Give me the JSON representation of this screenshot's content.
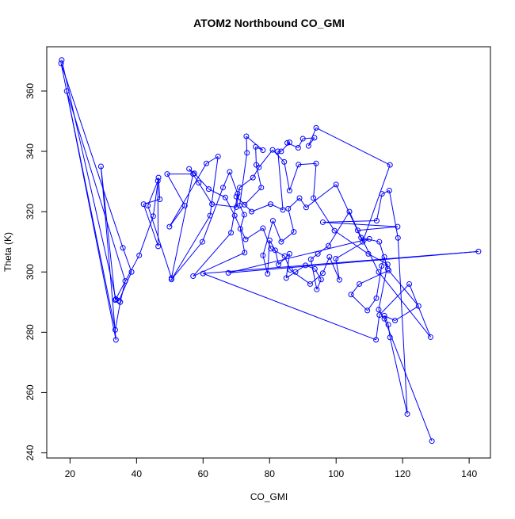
{
  "chart_data": {
    "type": "line",
    "title": "ATOM2 Northbound CO_GMI",
    "xlabel": "CO_GMI",
    "ylabel": "Theta (K)",
    "xlim": [
      13.0,
      146.4
    ],
    "ylim": [
      238.3,
      374.7
    ],
    "x_ticks": [
      20,
      40,
      60,
      80,
      100,
      120,
      140
    ],
    "y_ticks": [
      240,
      260,
      280,
      300,
      320,
      340,
      360
    ],
    "grid": false,
    "legend": "none",
    "series_color": "#0000ff",
    "markers": "open-circle",
    "series": [
      {
        "points": [
          [
            17.5,
            370.3
          ],
          [
            33.8,
            291.0
          ],
          [
            34.7,
            290.5
          ],
          [
            38.5,
            300.0
          ],
          [
            35.9,
            308.0
          ],
          [
            17.3,
            369.2
          ],
          [
            33.6,
            280.8
          ],
          [
            35.1,
            290.0
          ],
          [
            36.6,
            297.0
          ],
          [
            19.0,
            360.0
          ],
          [
            33.8,
            277.5
          ],
          [
            29.3,
            335.0
          ],
          [
            33.6,
            290.7
          ],
          [
            40.8,
            305.5
          ],
          [
            45.0,
            318.5
          ],
          [
            46.6,
            331.3
          ],
          [
            47.0,
            324.1
          ],
          [
            42.1,
            322.5
          ],
          [
            46.5,
            308.5
          ],
          [
            46.4,
            330.2
          ],
          [
            43.4,
            322.0
          ],
          [
            50.5,
            298.0
          ],
          [
            57.0,
            332.5
          ],
          [
            49.2,
            332.5
          ],
          [
            54.5,
            322.0
          ],
          [
            49.9,
            315.0
          ],
          [
            61.0,
            336.0
          ],
          [
            64.5,
            338.3
          ],
          [
            62.1,
            318.7
          ],
          [
            50.5,
            297.5
          ],
          [
            59.8,
            310.0
          ],
          [
            66.0,
            328.0
          ],
          [
            68.0,
            333.2
          ],
          [
            70.4,
            326.0
          ],
          [
            68.4,
            313.0
          ],
          [
            57.0,
            298.6
          ],
          [
            72.5,
            306.4
          ],
          [
            71.2,
            314.3
          ],
          [
            72.4,
            319.0
          ],
          [
            71.0,
            322.0
          ],
          [
            73.2,
            339.5
          ],
          [
            73.0,
            345.0
          ],
          [
            78.0,
            340.4
          ],
          [
            75.8,
            341.5
          ],
          [
            76.0,
            335.5
          ],
          [
            77.5,
            328.0
          ],
          [
            72.5,
            322.3
          ],
          [
            70.0,
            325.0
          ],
          [
            74.6,
            320.0
          ],
          [
            80.3,
            322.5
          ],
          [
            84.0,
            320.6
          ],
          [
            82.5,
            340.0
          ],
          [
            83.5,
            340.0
          ],
          [
            86.0,
            343.0
          ],
          [
            85.3,
            342.8
          ],
          [
            88.6,
            341.2
          ],
          [
            90.0,
            344.2
          ],
          [
            93.5,
            344.5
          ],
          [
            91.7,
            341.8
          ],
          [
            94.0,
            347.8
          ],
          [
            116.2,
            335.5
          ],
          [
            108.0,
            310.0
          ],
          [
            100.0,
            329.0
          ],
          [
            91.0,
            321.4
          ],
          [
            89.0,
            324.5
          ],
          [
            85.6,
            321.0
          ],
          [
            87.3,
            313.3
          ],
          [
            83.5,
            310.0
          ],
          [
            81.0,
            317.0
          ],
          [
            78.0,
            305.5
          ],
          [
            79.4,
            299.4
          ],
          [
            80.0,
            310.5
          ],
          [
            81.7,
            307.2
          ],
          [
            82.7,
            302.5
          ],
          [
            86.0,
            306.0
          ],
          [
            85.0,
            298.0
          ],
          [
            87.8,
            300.0
          ],
          [
            90.8,
            302.2
          ],
          [
            93.6,
            301.0
          ],
          [
            95.5,
            297.5
          ],
          [
            94.2,
            294.2
          ],
          [
            92.4,
            304.2
          ],
          [
            94.5,
            306.0
          ],
          [
            97.7,
            308.7
          ],
          [
            104.0,
            320.0
          ],
          [
            107.5,
            311.4
          ],
          [
            113.0,
            310.0
          ],
          [
            115.5,
            301.0
          ],
          [
            114.5,
            305.0
          ],
          [
            113.7,
            302.0
          ],
          [
            112.1,
            291.3
          ],
          [
            109.4,
            287.2
          ],
          [
            104.5,
            292.5
          ],
          [
            107.0,
            296.0
          ],
          [
            115.8,
            300.5
          ],
          [
            124.8,
            288.7
          ],
          [
            117.7,
            283.9
          ],
          [
            114.5,
            285.5
          ],
          [
            115.7,
            282.5
          ],
          [
            116.2,
            278.3
          ],
          [
            121.4,
            252.9
          ],
          [
            118.6,
            311.3
          ],
          [
            116.0,
            327.0
          ],
          [
            113.8,
            325.9
          ],
          [
            112.2,
            317.0
          ],
          [
            96.0,
            316.5
          ],
          [
            118.5,
            315.0
          ],
          [
            106.5,
            313.8
          ],
          [
            112.8,
            300.0
          ],
          [
            128.4,
            278.4
          ],
          [
            122.0,
            296.0
          ],
          [
            113.0,
            285.7
          ],
          [
            112.0,
            277.5
          ],
          [
            60.0,
            299.5
          ],
          [
            142.8,
            306.8
          ],
          [
            67.6,
            299.7
          ],
          [
            110.0,
            311.0
          ],
          [
            99.9,
            304.4
          ],
          [
            101.0,
            297.4
          ],
          [
            98.0,
            305.0
          ],
          [
            96.0,
            299.6
          ],
          [
            92.2,
            296.0
          ],
          [
            86.2,
            300.7
          ],
          [
            84.5,
            305.3
          ],
          [
            80.4,
            307.7
          ],
          [
            78.0,
            314.5
          ],
          [
            72.8,
            310.8
          ],
          [
            69.5,
            318.7
          ],
          [
            66.7,
            324.7
          ],
          [
            61.7,
            327.5
          ],
          [
            57.4,
            332.7
          ],
          [
            55.8,
            334.2
          ],
          [
            58.7,
            329.6
          ],
          [
            62.7,
            322.5
          ],
          [
            70.0,
            321.5
          ],
          [
            71.0,
            328.0
          ],
          [
            75.0,
            331.3
          ],
          [
            76.8,
            334.7
          ],
          [
            80.9,
            340.5
          ],
          [
            84.4,
            336.5
          ],
          [
            86.0,
            327.0
          ],
          [
            88.7,
            335.6
          ],
          [
            94.0,
            336.0
          ],
          [
            93.2,
            324.5
          ],
          [
            99.5,
            313.7
          ],
          [
            109.7,
            306.0
          ],
          [
            115.5,
            302.5
          ],
          [
            112.8,
            287.5
          ],
          [
            114.5,
            284.5
          ],
          [
            128.8,
            243.9
          ]
        ]
      }
    ]
  }
}
